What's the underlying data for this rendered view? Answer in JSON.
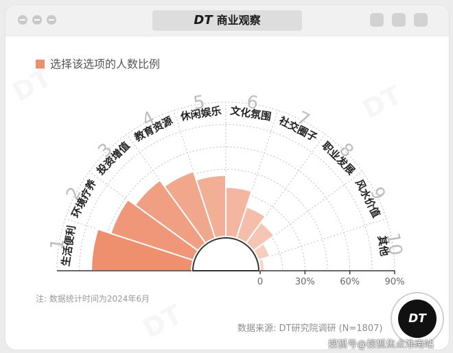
{
  "window": {
    "brand_logo": "DT",
    "brand_name": "商业观察"
  },
  "colors": {
    "accent": "#ee8f6e",
    "accent_light": "#f6c6b3",
    "text_dark": "#222222",
    "number_gray": "#bdbdbd",
    "grid": "#bcbcbc"
  },
  "legend": {
    "label": "选择该选项的人数比例"
  },
  "chart_data": {
    "type": "bar",
    "layout": "radial-half",
    "ylim": [
      0,
      90
    ],
    "ticks": [
      "0",
      "30%",
      "60%",
      "90%"
    ],
    "categories": [
      {
        "number": "1",
        "label": "生活便利",
        "value": 67
      },
      {
        "number": "2",
        "label": "环境疗养",
        "value": 58
      },
      {
        "number": "3",
        "label": "投资增值",
        "value": 52
      },
      {
        "number": "4",
        "label": "教育资源",
        "value": 47
      },
      {
        "number": "5",
        "label": "休闲娱乐",
        "value": 41
      },
      {
        "number": "6",
        "label": "文化氛围",
        "value": 33
      },
      {
        "number": "7",
        "label": "社交圈子",
        "value": 22
      },
      {
        "number": "8",
        "label": "职业发展",
        "value": 17
      },
      {
        "number": "9",
        "label": "风水价值",
        "value": 8
      },
      {
        "number": "10",
        "label": "其他",
        "value": 3
      }
    ]
  },
  "note": "注: 数据统计时间为2024年6月",
  "source": "数据来源: DT研究院调研 (N=1807)",
  "badge": "DT",
  "sohu_watermark": "搜狐号@搜狐焦点淮南站"
}
